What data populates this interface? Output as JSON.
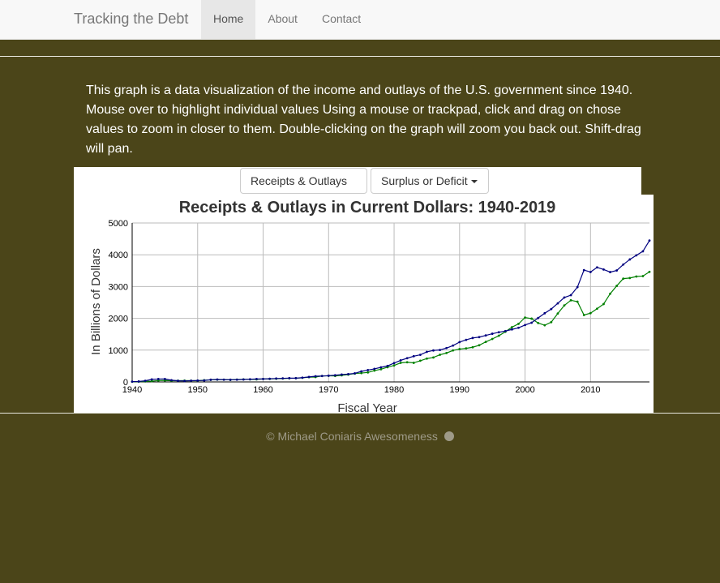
{
  "navbar": {
    "brand": "Tracking the Debt",
    "items": [
      {
        "label": "Home",
        "active": true
      },
      {
        "label": "About",
        "active": false
      },
      {
        "label": "Contact",
        "active": false
      }
    ]
  },
  "intro_text": "This graph is a data visualization of the income and outlays of the U.S. government since 1940. Mouse over to highlight individual values Using a mouse or trackpad, click and drag on chose values to zoom in closer to them. Double-clicking on the graph will zoom you back out. Shift-drag will pan.",
  "dropdowns": {
    "receipts_outlays": "Receipts & Outlays",
    "surplus_deficit": "Surplus or Deficit"
  },
  "footer": {
    "copyright_symbol": "©",
    "text": "Michael Coniaris Awesomeness"
  },
  "colors": {
    "background": "#4b4519",
    "outlays_line": "#000080",
    "receipts_line": "#008000"
  },
  "chart_data": {
    "type": "line",
    "title": "Receipts & Outlays in Current Dollars: 1940-2019",
    "xlabel": "Fiscal Year",
    "ylabel": "In Billions of Dollars",
    "xlim": [
      1940,
      2019
    ],
    "ylim": [
      0,
      5000
    ],
    "xticks": [
      1940,
      1950,
      1960,
      1970,
      1980,
      1990,
      2000,
      2010
    ],
    "yticks": [
      0,
      1000,
      2000,
      3000,
      4000,
      5000
    ],
    "grid": true,
    "x": [
      1940,
      1941,
      1942,
      1943,
      1944,
      1945,
      1946,
      1947,
      1948,
      1949,
      1950,
      1951,
      1952,
      1953,
      1954,
      1955,
      1956,
      1957,
      1958,
      1959,
      1960,
      1961,
      1962,
      1963,
      1964,
      1965,
      1966,
      1967,
      1968,
      1969,
      1970,
      1971,
      1972,
      1973,
      1974,
      1975,
      1976,
      1977,
      1978,
      1979,
      1980,
      1981,
      1982,
      1983,
      1984,
      1985,
      1986,
      1987,
      1988,
      1989,
      1990,
      1991,
      1992,
      1993,
      1994,
      1995,
      1996,
      1997,
      1998,
      1999,
      2000,
      2001,
      2002,
      2003,
      2004,
      2005,
      2006,
      2007,
      2008,
      2009,
      2010,
      2011,
      2012,
      2013,
      2014,
      2015,
      2016,
      2017,
      2018,
      2019
    ],
    "series": [
      {
        "values": [
          10,
          14,
          35,
          79,
          91,
          93,
          55,
          35,
          30,
          39,
          43,
          46,
          68,
          76,
          71,
          68,
          71,
          77,
          82,
          92,
          92,
          98,
          107,
          111,
          119,
          118,
          134,
          157,
          178,
          184,
          196,
          210,
          231,
          246,
          269,
          332,
          372,
          410,
          459,
          504,
          591,
          678,
          746,
          808,
          852,
          946,
          990,
          1004,
          1065,
          1144,
          1253,
          1324,
          1382,
          1409,
          1462,
          1516,
          1561,
          1601,
          1652,
          1702,
          1789,
          1863,
          2011,
          2160,
          2293,
          2472,
          2655,
          2729,
          2983,
          3518,
          3457,
          3603,
          3537,
          3455,
          3506,
          3692,
          3853,
          3982,
          4109,
          4447
        ]
      },
      {
        "values": [
          7,
          9,
          15,
          24,
          43,
          45,
          39,
          39,
          42,
          39,
          39,
          52,
          66,
          70,
          70,
          65,
          74,
          80,
          80,
          79,
          92,
          94,
          100,
          107,
          113,
          117,
          131,
          149,
          153,
          187,
          193,
          187,
          207,
          231,
          263,
          279,
          298,
          356,
          400,
          463,
          517,
          599,
          618,
          601,
          666,
          734,
          769,
          854,
          909,
          991,
          1032,
          1055,
          1091,
          1154,
          1259,
          1352,
          1453,
          1579,
          1722,
          1827,
          2025,
          1991,
          1853,
          1782,
          1880,
          2153,
          2407,
          2568,
          2524,
          2105,
          2163,
          2303,
          2450,
          2775,
          3021,
          3250,
          3268,
          3316,
          3330,
          3463
        ]
      }
    ]
  }
}
